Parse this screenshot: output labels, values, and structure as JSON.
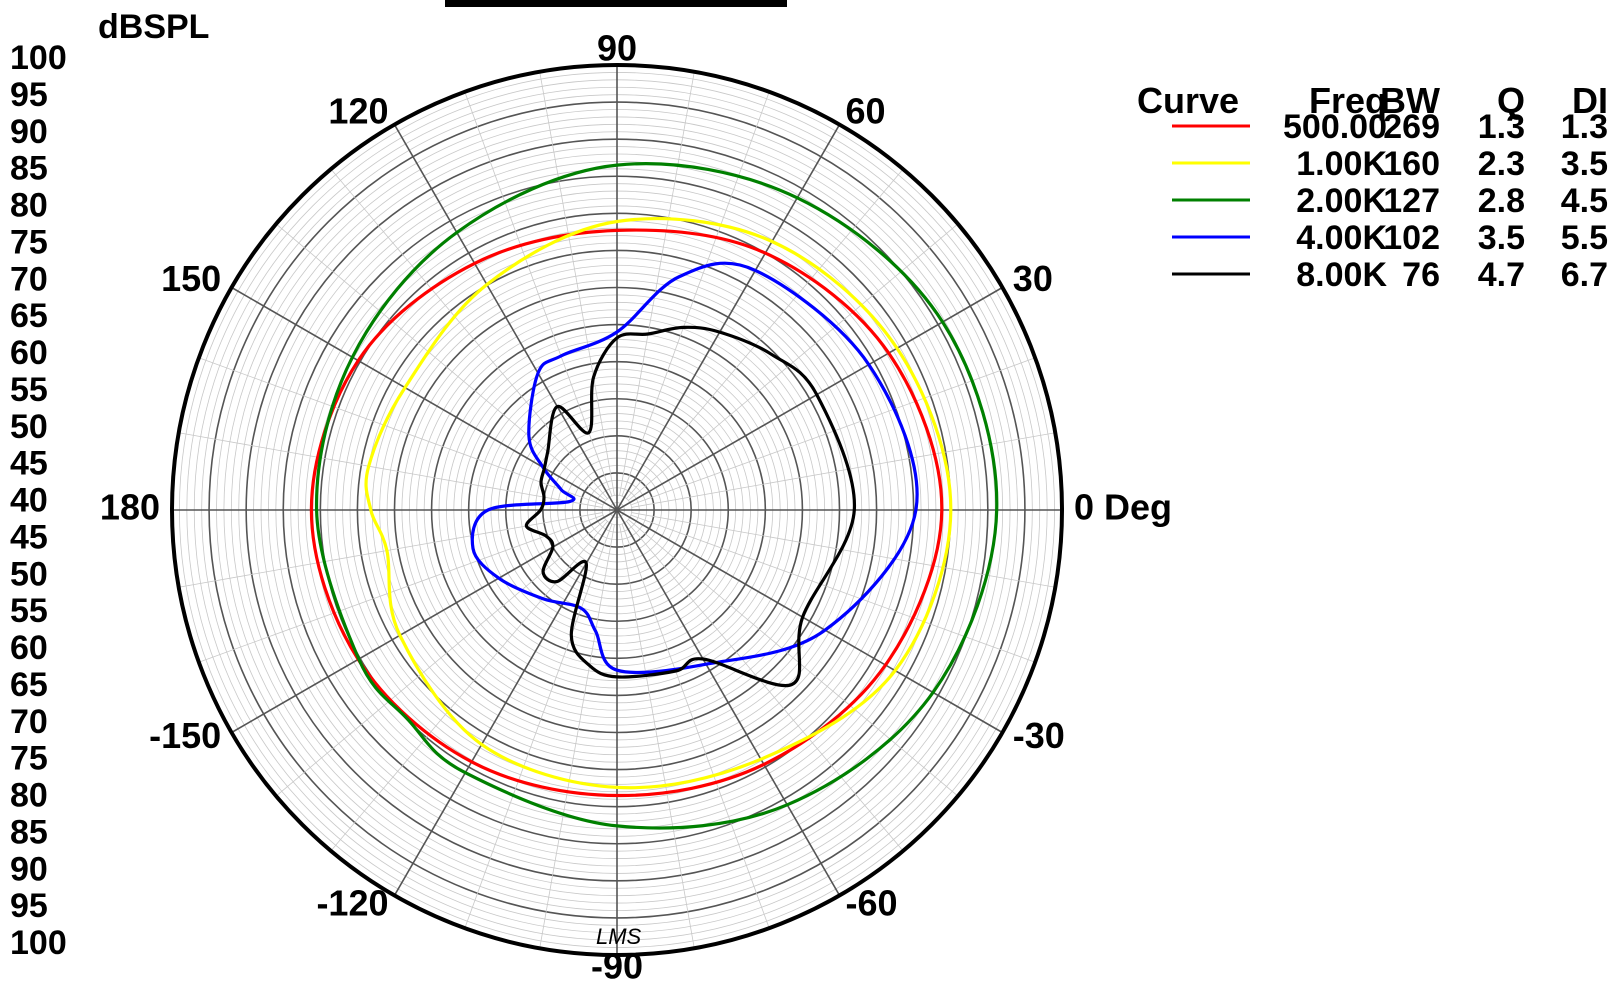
{
  "chart_data": {
    "type": "polar",
    "ylabel": "dBSPL",
    "r_range": [
      40,
      100
    ],
    "r_ticks": [
      100,
      95,
      90,
      85,
      80,
      75,
      70,
      65,
      60,
      55,
      50,
      45,
      40,
      45,
      50,
      55,
      60,
      65,
      70,
      75,
      80,
      85,
      90,
      95,
      100
    ],
    "r_minor_step": 1,
    "angle_major_step": 30,
    "angle_minor_step": 10,
    "angle_labels": [
      {
        "angle": 0,
        "text": "0 Deg"
      },
      {
        "angle": 30,
        "text": "30"
      },
      {
        "angle": 60,
        "text": "60"
      },
      {
        "angle": 90,
        "text": "90"
      },
      {
        "angle": 120,
        "text": "120"
      },
      {
        "angle": 150,
        "text": "150"
      },
      {
        "angle": 180,
        "text": "180"
      },
      {
        "angle": -150,
        "text": "-150"
      },
      {
        "angle": -120,
        "text": "-120"
      },
      {
        "angle": -90,
        "text": "-90"
      },
      {
        "angle": -60,
        "text": "-60"
      },
      {
        "angle": -30,
        "text": "-30"
      }
    ],
    "watermark": "LMS",
    "legend": {
      "position": "right",
      "headers": [
        "Curve",
        "Freq",
        "BW",
        "Q",
        "DI"
      ],
      "rows": [
        {
          "freq": "500.00",
          "bw": "269",
          "q": "1.3",
          "di": "1.3",
          "color": "#ff0000"
        },
        {
          "freq": "1.00K",
          "bw": "160",
          "q": "2.3",
          "di": "3.5",
          "color": "#ffff00"
        },
        {
          "freq": "2.00K",
          "bw": "127",
          "q": "2.8",
          "di": "4.5",
          "color": "#008000"
        },
        {
          "freq": "4.00K",
          "bw": "102",
          "q": "3.5",
          "di": "5.5",
          "color": "#0000ff"
        },
        {
          "freq": "8.00K",
          "bw": "76",
          "q": "4.7",
          "di": "6.7",
          "color": "#000000"
        }
      ]
    },
    "series": [
      {
        "color": "#ff0000",
        "angles": [
          0,
          30,
          60,
          90,
          120,
          150,
          180,
          -150,
          -120,
          -90,
          -60,
          -30
        ],
        "levels": [
          83.8,
          82.3,
          80.0,
          77.7,
          78.4,
          80.3,
          81.2,
          80.3,
          79.2,
          78.5,
          79.6,
          81.8
        ]
      },
      {
        "color": "#ffff00",
        "angles": [
          0,
          30,
          60,
          90,
          120,
          150,
          170,
          180,
          -170,
          -150,
          -120,
          -90,
          -60,
          -30
        ],
        "levels": [
          85.0,
          83.6,
          81.8,
          78.9,
          75.1,
          73.0,
          74.0,
          73.2,
          71.5,
          73.8,
          76.5,
          77.4,
          78.8,
          83.3
        ]
      },
      {
        "color": "#008000",
        "angles": [
          0,
          30,
          60,
          90,
          120,
          150,
          180,
          -150,
          -135,
          -120,
          -90,
          -60,
          -30
        ],
        "levels": [
          91.2,
          90.7,
          88.6,
          86.5,
          83.2,
          81.2,
          80.5,
          80.2,
          79.9,
          80.9,
          82.6,
          85.9,
          89.2
        ]
      },
      {
        "color": "#0000ff",
        "angles": [
          0,
          30,
          60,
          75,
          90,
          110,
          120,
          140,
          150,
          160,
          170,
          180,
          -165,
          -150,
          -130,
          -110,
          -100,
          -90,
          -60,
          -30
        ],
        "levels": [
          80.3,
          79.2,
          77.3,
          72.6,
          64.0,
          62.1,
          61.3,
          55.5,
          51.5,
          48.0,
          46.5,
          57.4,
          60.1,
          58.4,
          55.6,
          54.1,
          56.6,
          61.6,
          64.0,
          72.4
        ]
      },
      {
        "color": "#000000",
        "angles": [
          0,
          30,
          45,
          60,
          70,
          80,
          90,
          100,
          110,
          120,
          140,
          150,
          160,
          170,
          180,
          -170,
          -160,
          -150,
          -140,
          -130,
          -120,
          -110,
          -100,
          -90,
          -70,
          -60,
          -45,
          -30
        ],
        "levels": [
          72.0,
          71.1,
          69.6,
          67.7,
          66.2,
          64.1,
          63.2,
          58.2,
          51.1,
          56.1,
          52.2,
          51.3,
          50.9,
          50.0,
          50.3,
          52.4,
          50.2,
          50.0,
          53.0,
          52.6,
          48.3,
          58.0,
          61.3,
          62.5,
          63.1,
          63.2,
          73.3,
          68.9
        ]
      }
    ]
  }
}
